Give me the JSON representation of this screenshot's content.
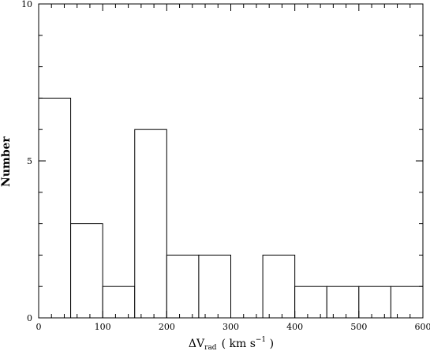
{
  "chart_data": {
    "type": "bar",
    "subtype": "histogram",
    "bin_edges": [
      0,
      50,
      100,
      150,
      200,
      250,
      300,
      350,
      400,
      450,
      500,
      550,
      600
    ],
    "counts": [
      7,
      3,
      1,
      6,
      2,
      2,
      0,
      2,
      1,
      1,
      1,
      1
    ],
    "xlim": [
      0,
      600
    ],
    "ylim": [
      0,
      10
    ],
    "x_ticks": [
      0,
      100,
      200,
      300,
      400,
      500,
      600
    ],
    "x_tick_labels": [
      "0",
      "100",
      "200",
      "300",
      "400",
      "500",
      "600"
    ],
    "y_ticks": [
      0,
      5,
      10
    ],
    "y_tick_labels": [
      "0",
      "5",
      "10"
    ],
    "xlabel": {
      "prefix": "ΔV",
      "subscript": "rad",
      "units_open": "( km s",
      "superscript": "−1",
      "units_close": " )"
    },
    "ylabel": "Number",
    "grid": false,
    "bar_fill": "#ffffff",
    "bar_stroke": "#000000"
  }
}
